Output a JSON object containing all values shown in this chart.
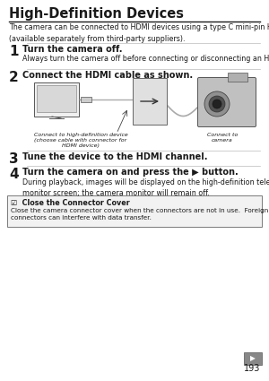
{
  "title": "High-Definition Devices",
  "subtitle": "The camera can be connected to HDMI devices using a type C mini-pin HDMI cable\n(available separately from third-party suppliers).",
  "step1_num": "1",
  "step1_head": "Turn the camera off.",
  "step1_body": "Always turn the camera off before connecting or disconnecting an HDMI cable.",
  "step2_num": "2",
  "step2_head": "Connect the HDMI cable as shown.",
  "step2_label_left": "Connect to high-definition device\n(choose cable with connector for\nHDMI device)",
  "step2_label_right": "Connect to\ncamera",
  "step3_num": "3",
  "step3_head": "Tune the device to the HDMI channel.",
  "step4_num": "4",
  "step4_head": "Turn the camera on and press the ▶ button.",
  "step4_body": "During playback, images will be displayed on the high-definition television or\nmonitor screen; the camera monitor will remain off.",
  "note_title": "☑  Close the Connector Cover",
  "note_body": "Close the camera connector cover when the connectors are not in use.  Foreign matter in the\nconnectors can interfere with data transfer.",
  "page_number": "193",
  "bg_color": "#ffffff",
  "text_color": "#1a1a1a",
  "line_color": "#bbbbbb",
  "note_bg": "#f2f2f2",
  "note_border": "#666666",
  "icon_bg": "#888888"
}
